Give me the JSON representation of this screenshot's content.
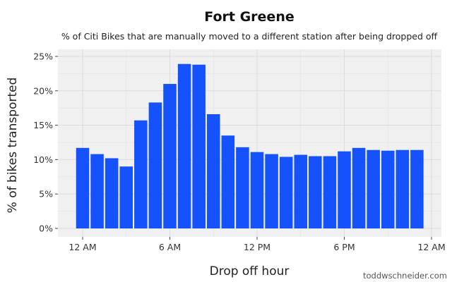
{
  "chart_data": {
    "type": "bar",
    "title": "Fort Greene",
    "subtitle": "% of Citi Bikes that are manually moved to a different station after being dropped off",
    "xlabel": "Drop off hour",
    "ylabel": "% of bikes transported",
    "categories": [
      0,
      1,
      2,
      3,
      4,
      5,
      6,
      7,
      8,
      9,
      10,
      11,
      12,
      13,
      14,
      15,
      16,
      17,
      18,
      19,
      20,
      21,
      22,
      23
    ],
    "values": [
      11.7,
      10.8,
      10.2,
      9.0,
      15.7,
      18.3,
      21.0,
      23.9,
      23.8,
      16.6,
      13.5,
      11.8,
      11.1,
      10.8,
      10.4,
      10.7,
      10.5,
      10.5,
      11.2,
      11.7,
      11.4,
      11.3,
      11.4,
      11.4
    ],
    "xlim": [
      -1,
      24
    ],
    "ylim": [
      -1,
      25
    ],
    "x_ticks": [
      {
        "value": 0,
        "label": "12 AM"
      },
      {
        "value": 6,
        "label": "6 AM"
      },
      {
        "value": 12,
        "label": "12 PM"
      },
      {
        "value": 18,
        "label": "6 PM"
      },
      {
        "value": 24,
        "label": "12 AM"
      }
    ],
    "y_ticks": [
      {
        "value": 0,
        "label": "0%"
      },
      {
        "value": 5,
        "label": "5%"
      },
      {
        "value": 10,
        "label": "10%"
      },
      {
        "value": 15,
        "label": "15%"
      },
      {
        "value": 20,
        "label": "20%"
      },
      {
        "value": 25,
        "label": "25%"
      }
    ],
    "bar_color": "#1652fb",
    "grid": true,
    "panel_background": "#f0f0f0",
    "grid_color": "#dcdcdc",
    "source": "toddwschneider.com"
  }
}
